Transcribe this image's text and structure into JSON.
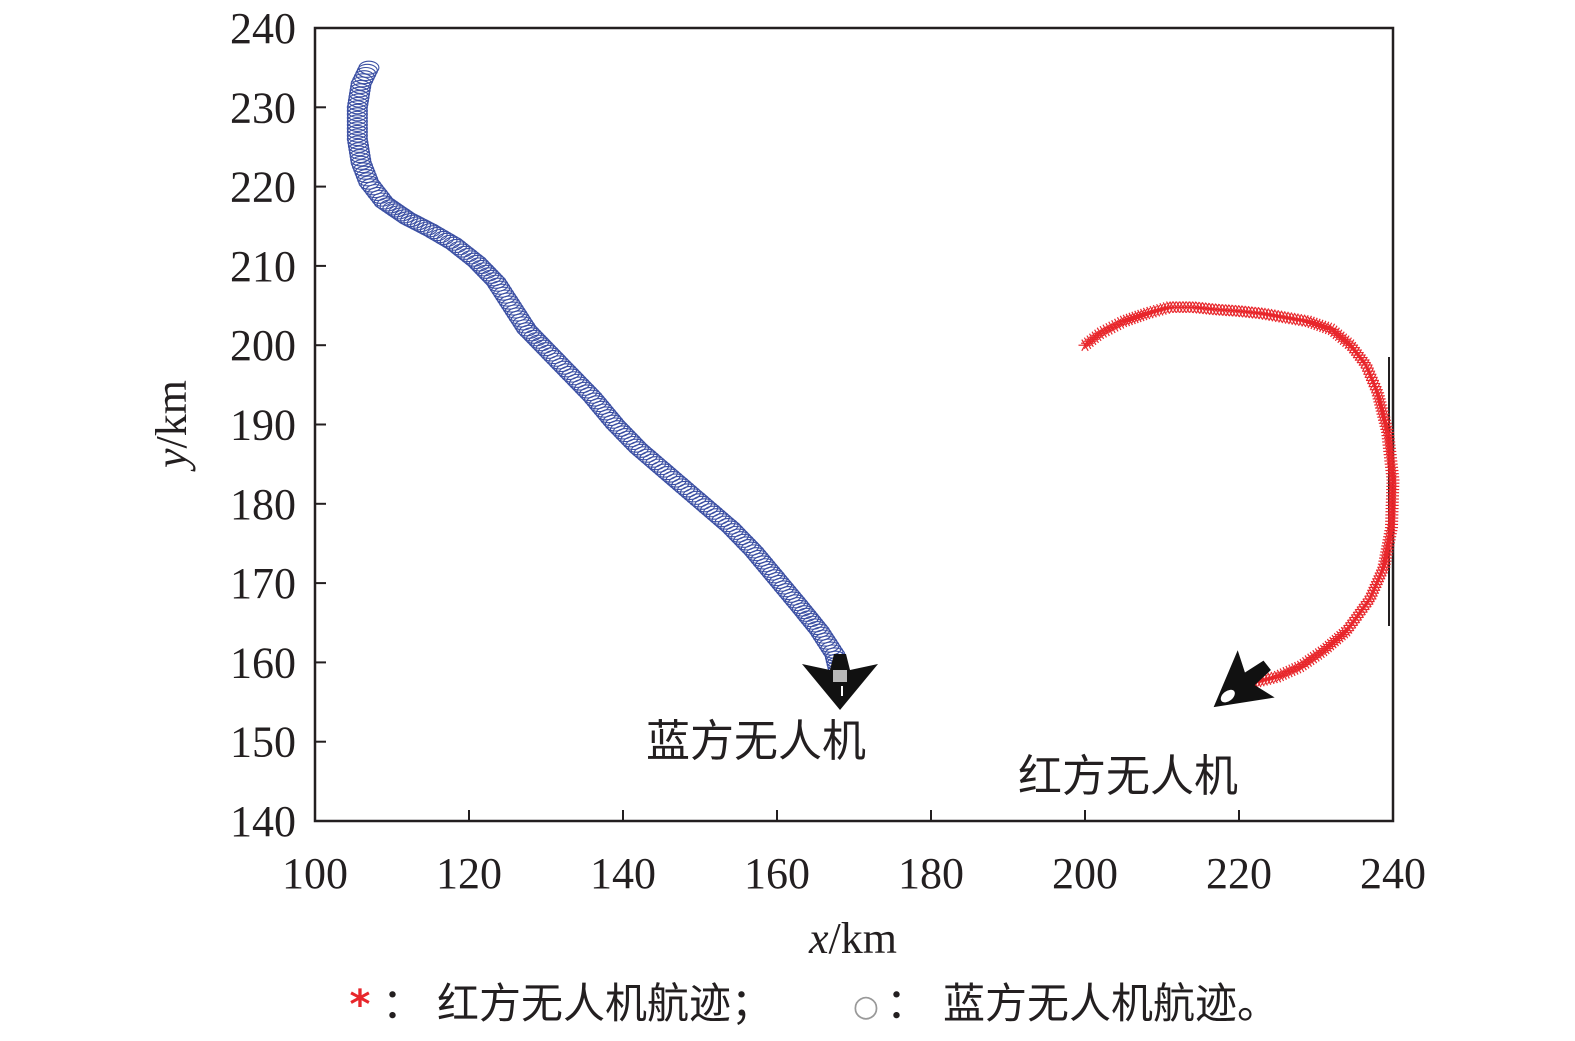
{
  "chart_data": {
    "type": "scatter",
    "xlabel": {
      "var": "x",
      "unit": "/km"
    },
    "ylabel": {
      "var": "y",
      "unit": "/km"
    },
    "xlim": [
      100,
      240
    ],
    "ylim": [
      140,
      240
    ],
    "xticks": [
      100,
      120,
      140,
      160,
      180,
      200,
      220,
      240
    ],
    "yticks": [
      140,
      150,
      160,
      170,
      180,
      190,
      200,
      210,
      220,
      230,
      240
    ],
    "grid": false,
    "series": [
      {
        "name": "红方无人机航迹",
        "marker": "asterisk",
        "color": "#e8262b",
        "points": [
          [
            200,
            200
          ],
          [
            202,
            201.5
          ],
          [
            205,
            203
          ],
          [
            208,
            204
          ],
          [
            211,
            204.8
          ],
          [
            214,
            204.8
          ],
          [
            217,
            204.5
          ],
          [
            220,
            204.3
          ],
          [
            223,
            204
          ],
          [
            226,
            203.5
          ],
          [
            229,
            203
          ],
          [
            232,
            202
          ],
          [
            234.5,
            200
          ],
          [
            236.5,
            197.5
          ],
          [
            238,
            194
          ],
          [
            239.3,
            189
          ],
          [
            240,
            183
          ],
          [
            239.8,
            177
          ],
          [
            238.8,
            172
          ],
          [
            237,
            168
          ],
          [
            234,
            164
          ],
          [
            231,
            161.5
          ],
          [
            228,
            159.5
          ],
          [
            225,
            158.2
          ],
          [
            222,
            157.5
          ]
        ]
      },
      {
        "name": "蓝方无人机航迹",
        "marker": "circle",
        "color": "#3b4fa3",
        "points": [
          [
            107,
            235
          ],
          [
            106,
            233
          ],
          [
            105.5,
            230
          ],
          [
            105.5,
            226
          ],
          [
            106,
            223
          ],
          [
            107,
            220.5
          ],
          [
            109,
            218
          ],
          [
            112,
            216
          ],
          [
            115,
            214.5
          ],
          [
            118,
            212.8
          ],
          [
            121,
            210.5
          ],
          [
            123.5,
            208
          ],
          [
            125.5,
            205
          ],
          [
            127.5,
            202
          ],
          [
            130,
            199.5
          ],
          [
            133,
            196.5
          ],
          [
            136,
            193.5
          ],
          [
            139,
            190
          ],
          [
            142,
            187
          ],
          [
            145,
            184.5
          ],
          [
            148,
            182
          ],
          [
            151,
            179.5
          ],
          [
            154,
            177
          ],
          [
            157,
            174
          ],
          [
            160,
            170.5
          ],
          [
            163,
            167
          ],
          [
            165.5,
            164
          ],
          [
            167.5,
            161
          ],
          [
            168,
            159
          ]
        ]
      }
    ],
    "annotations": [
      {
        "text": "蓝方无人机",
        "x": 168,
        "y": 150
      },
      {
        "text": "红方无人机",
        "x": 218,
        "y": 144.5
      }
    ],
    "legend": {
      "placement": "bottom",
      "separator": "：",
      "items": [
        {
          "symbol": "*",
          "color": "#e8262b",
          "label": "红方无人机航迹；"
        },
        {
          "symbol": "○",
          "color": "#999999",
          "label": "蓝方无人机航迹。"
        }
      ]
    }
  }
}
